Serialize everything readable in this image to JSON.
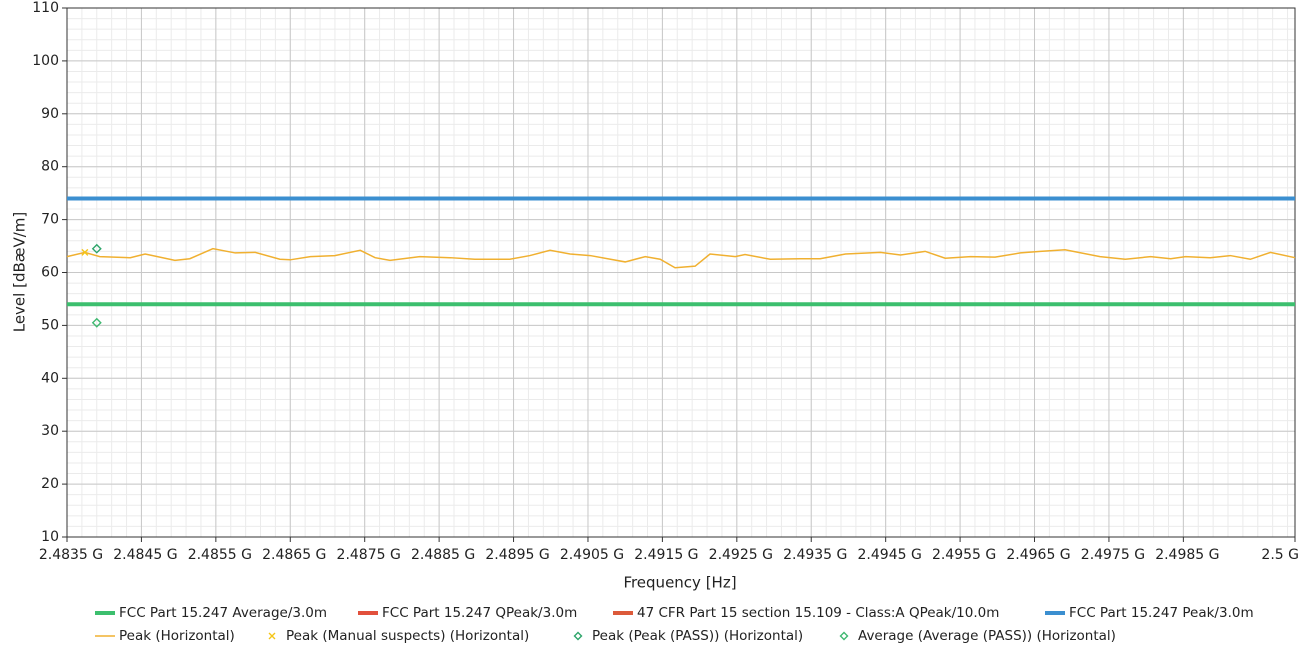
{
  "chart_data": {
    "type": "line",
    "xlabel": "Frequency [Hz]",
    "ylabel": "Level [dBæV/m]",
    "xlim": [
      2483500000,
      2500000000
    ],
    "xticks": [
      {
        "value": 2483500000,
        "label": "2.4835 G"
      },
      {
        "value": 2484500000,
        "label": "2.4845 G"
      },
      {
        "value": 2485500000,
        "label": "2.4855 G"
      },
      {
        "value": 2486500000,
        "label": "2.4865 G"
      },
      {
        "value": 2487500000,
        "label": "2.4875 G"
      },
      {
        "value": 2488500000,
        "label": "2.4885 G"
      },
      {
        "value": 2489500000,
        "label": "2.4895 G"
      },
      {
        "value": 2490500000,
        "label": "2.4905 G"
      },
      {
        "value": 2491500000,
        "label": "2.4915 G"
      },
      {
        "value": 2492500000,
        "label": "2.4925 G"
      },
      {
        "value": 2493500000,
        "label": "2.4935 G"
      },
      {
        "value": 2494500000,
        "label": "2.4945 G"
      },
      {
        "value": 2495500000,
        "label": "2.4955 G"
      },
      {
        "value": 2496500000,
        "label": "2.4965 G"
      },
      {
        "value": 2497500000,
        "label": "2.4975 G"
      },
      {
        "value": 2498500000,
        "label": "2.4985 G"
      },
      {
        "value": 2500000000,
        "label": "2.5 G"
      }
    ],
    "ylim": [
      10,
      110
    ],
    "yticks": [
      10,
      20,
      30,
      40,
      50,
      60,
      70,
      80,
      90,
      100,
      110
    ],
    "grid": true,
    "legend": "bottom",
    "series": [
      {
        "name": "FCC Part 15.247 Average/3.0m",
        "color": "#3cbf6e",
        "style": "limit",
        "x": [
          2483500000,
          2500000000
        ],
        "values": [
          54,
          54
        ]
      },
      {
        "name": "FCC Part 15.247 QPeak/3.0m",
        "color": "#e2503c",
        "style": "limit",
        "x": [],
        "values": []
      },
      {
        "name": "47 CFR Part 15 section 15.109 - Class:A QPeak/10.0m",
        "color": "#dc5a3a",
        "style": "limit",
        "x": [],
        "values": []
      },
      {
        "name": "FCC Part 15.247 Peak/3.0m",
        "color": "#3b8fd0",
        "style": "limit",
        "x": [
          2483500000,
          2500000000
        ],
        "values": [
          74,
          74
        ]
      },
      {
        "name": "Peak (Horizontal)",
        "color": "#f0b030",
        "style": "trace",
        "x": [
          2483500000,
          2483740000,
          2483940000,
          2484350000,
          2484550000,
          2484950000,
          2485150000,
          2485460000,
          2485760000,
          2486030000,
          2486360000,
          2486500000,
          2486770000,
          2487100000,
          2487440000,
          2487640000,
          2487840000,
          2488240000,
          2488650000,
          2488980000,
          2489450000,
          2489720000,
          2489990000,
          2490260000,
          2490530000,
          2491000000,
          2491270000,
          2491470000,
          2491670000,
          2491940000,
          2492140000,
          2492480000,
          2492610000,
          2492950000,
          2493350000,
          2493620000,
          2493960000,
          2494430000,
          2494700000,
          2495030000,
          2495300000,
          2495640000,
          2495970000,
          2496310000,
          2496580000,
          2496910000,
          2497380000,
          2497720000,
          2498060000,
          2498330000,
          2498530000,
          2498860000,
          2499130000,
          2499400000,
          2499670000,
          2500000000
        ],
        "values": [
          63,
          63.8,
          63,
          62.8,
          63.5,
          62.3,
          62.6,
          64.5,
          63.7,
          63.8,
          62.5,
          62.4,
          63,
          63.2,
          64.2,
          62.8,
          62.3,
          63,
          62.8,
          62.5,
          62.5,
          63.2,
          64.2,
          63.5,
          63.2,
          62,
          63,
          62.5,
          60.9,
          61.2,
          63.5,
          63,
          63.4,
          62.5,
          62.6,
          62.6,
          63.5,
          63.8,
          63.3,
          64,
          62.7,
          63,
          62.9,
          63.7,
          64,
          64.3,
          63,
          62.5,
          63,
          62.6,
          63,
          62.8,
          63.2,
          62.5,
          63.8,
          62.8
        ]
      },
      {
        "name": "Peak (Manual suspects) (Horizontal)",
        "color": "#f5c518",
        "style": "cross",
        "x": [
          2483740000
        ],
        "values": [
          63.8
        ]
      },
      {
        "name": "Peak (Peak (PASS)) (Horizontal)",
        "color": "#2ea56a",
        "style": "diamond",
        "x": [
          2483900000
        ],
        "values": [
          64.5
        ]
      },
      {
        "name": "Average (Average (PASS)) (Horizontal)",
        "color": "#3fb870",
        "style": "diamond",
        "x": [
          2483900000
        ],
        "values": [
          50.5
        ]
      }
    ]
  }
}
